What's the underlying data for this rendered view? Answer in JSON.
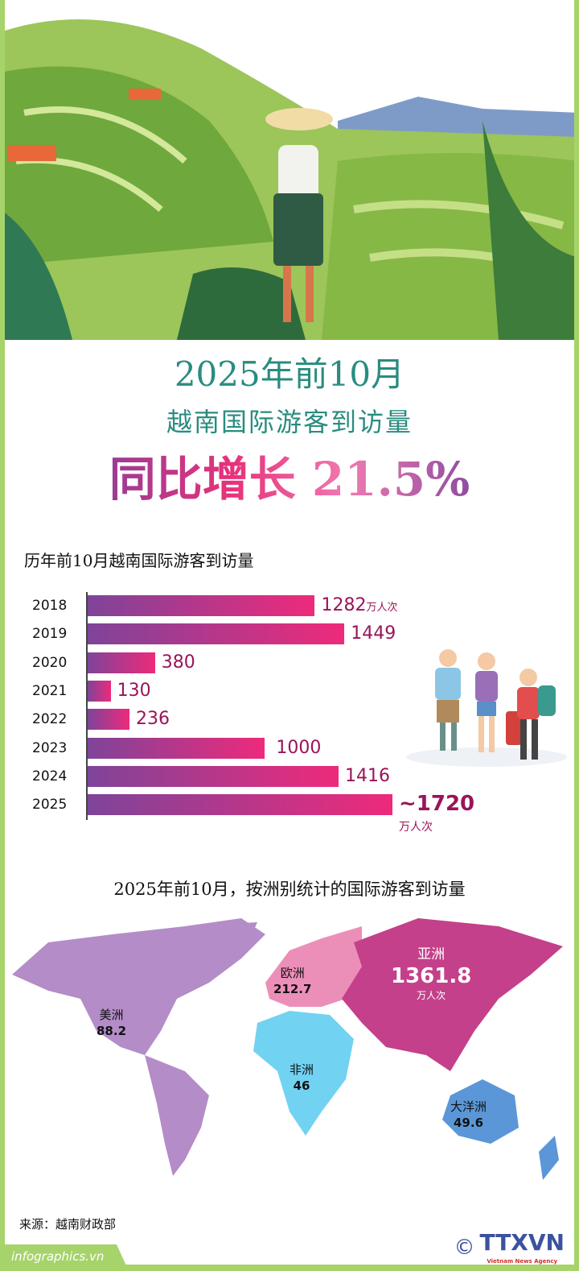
{
  "header": {
    "title_line1": "2025年前10月",
    "title_line2": "越南国际游客到访量",
    "highlight": "同比增长 21.5%"
  },
  "chart_data": {
    "type": "bar",
    "orientation": "horizontal",
    "title": "历年前10月越南国际游客到访量",
    "categories": [
      "2018",
      "2019",
      "2020",
      "2021",
      "2022",
      "2023",
      "2024",
      "2025"
    ],
    "values": [
      1282,
      1449,
      380,
      130,
      236,
      1000,
      1416,
      1720
    ],
    "labels": [
      "1282",
      "1449",
      "380",
      "130",
      "236",
      "1000",
      "1416",
      "~1720"
    ],
    "unit": "万人次",
    "colors": {
      "start": "#7e4499",
      "end": "#ee2a7b",
      "label": "#9a1458"
    }
  },
  "map": {
    "title": "2025年前10月，按洲别统计的国际游客到访量",
    "regions": [
      {
        "name": "美洲",
        "value": "88.2",
        "color": "#b48cc8"
      },
      {
        "name": "欧洲",
        "value": "212.7",
        "color": "#ec8fb8"
      },
      {
        "name": "亚洲",
        "value": "1361.8",
        "unit": "万人次",
        "color": "#c4408a"
      },
      {
        "name": "非洲",
        "value": "46",
        "color": "#72d2f2"
      },
      {
        "name": "大洋洲",
        "value": "49.6",
        "color": "#5b97d8"
      }
    ]
  },
  "footer": {
    "source": "来源：越南财政部",
    "site": "infographics.vn",
    "copyright": "©",
    "logo": "TTXVN",
    "logo_sub": "Vietnam News Agency"
  }
}
